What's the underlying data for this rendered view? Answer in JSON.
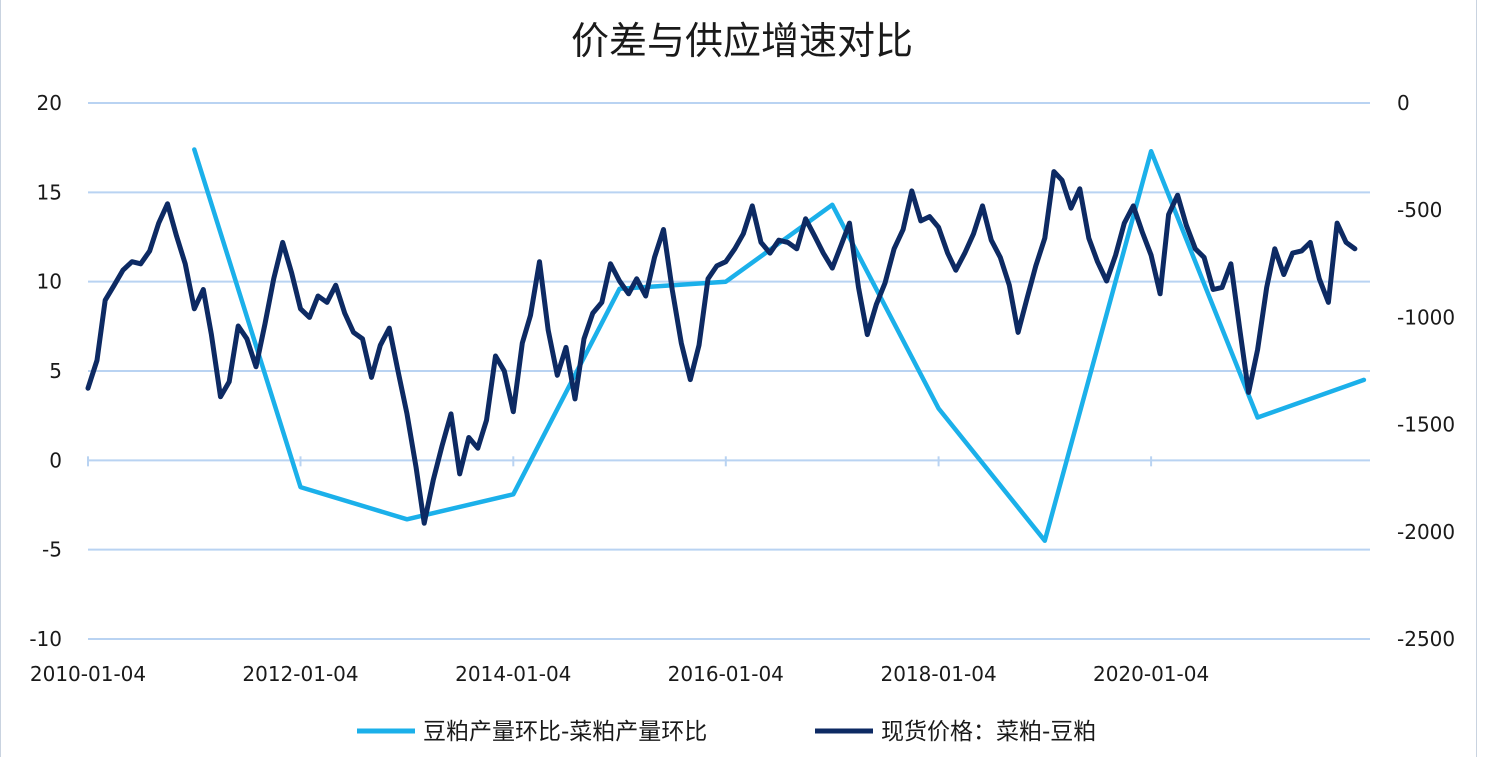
{
  "chart_data": {
    "type": "line",
    "title": "价差与供应增速对比",
    "x_tick_labels": [
      "2010-01-04",
      "2012-01-04",
      "2014-01-04",
      "2016-01-04",
      "2018-01-04",
      "2020-01-04"
    ],
    "y_left": {
      "range": [
        -10,
        20
      ],
      "ticks": [
        "20",
        "15",
        "10",
        "5",
        "0",
        "-5",
        "-10"
      ]
    },
    "y_right": {
      "range": [
        -2500,
        0
      ],
      "ticks": [
        "0",
        "-500",
        "-1000",
        "-1500",
        "-2000",
        "-2500"
      ]
    },
    "grid": "horizontal",
    "legend_position": "bottom",
    "series": [
      {
        "name": "豆粕产量环比-菜粕产量环比",
        "axis": "left",
        "color": "#1bb0ea",
        "points": [
          [
            "2011-01",
            17.4
          ],
          [
            "2012-01",
            -1.5
          ],
          [
            "2013-01",
            -3.3
          ],
          [
            "2014-01",
            -1.9
          ],
          [
            "2015-01",
            9.6
          ],
          [
            "2016-01",
            10.0
          ],
          [
            "2017-01",
            14.3
          ],
          [
            "2018-01",
            2.9
          ],
          [
            "2019-01",
            -4.5
          ],
          [
            "2020-01",
            17.3
          ],
          [
            "2021-01",
            2.4
          ],
          [
            "2022-01",
            4.5
          ]
        ]
      },
      {
        "name": "现货价格：菜粕-豆粕",
        "axis": "right",
        "color": "#0d2a63",
        "points": [
          [
            "2010-01",
            -1330
          ],
          [
            "2010-02",
            -1200
          ],
          [
            "2010-03",
            -920
          ],
          [
            "2010-04",
            -850
          ],
          [
            "2010-05",
            -780
          ],
          [
            "2010-06",
            -740
          ],
          [
            "2010-07",
            -750
          ],
          [
            "2010-08",
            -690
          ],
          [
            "2010-09",
            -560
          ],
          [
            "2010-10",
            -470
          ],
          [
            "2010-11",
            -620
          ],
          [
            "2010-12",
            -750
          ],
          [
            "2011-01",
            -960
          ],
          [
            "2011-02",
            -870
          ],
          [
            "2011-03",
            -1080
          ],
          [
            "2011-04",
            -1370
          ],
          [
            "2011-05",
            -1300
          ],
          [
            "2011-06",
            -1040
          ],
          [
            "2011-07",
            -1100
          ],
          [
            "2011-08",
            -1230
          ],
          [
            "2011-09",
            -1030
          ],
          [
            "2011-10",
            -820
          ],
          [
            "2011-11",
            -650
          ],
          [
            "2011-12",
            -790
          ],
          [
            "2012-01",
            -960
          ],
          [
            "2012-02",
            -1000
          ],
          [
            "2012-03",
            -900
          ],
          [
            "2012-04",
            -930
          ],
          [
            "2012-05",
            -850
          ],
          [
            "2012-06",
            -980
          ],
          [
            "2012-07",
            -1070
          ],
          [
            "2012-08",
            -1100
          ],
          [
            "2012-09",
            -1280
          ],
          [
            "2012-10",
            -1130
          ],
          [
            "2012-11",
            -1050
          ],
          [
            "2012-12",
            -1250
          ],
          [
            "2013-01",
            -1450
          ],
          [
            "2013-02",
            -1700
          ],
          [
            "2013-03",
            -1960
          ],
          [
            "2013-04",
            -1760
          ],
          [
            "2013-05",
            -1600
          ],
          [
            "2013-06",
            -1450
          ],
          [
            "2013-07",
            -1730
          ],
          [
            "2013-08",
            -1560
          ],
          [
            "2013-09",
            -1610
          ],
          [
            "2013-10",
            -1480
          ],
          [
            "2013-11",
            -1180
          ],
          [
            "2013-12",
            -1250
          ],
          [
            "2014-01",
            -1440
          ],
          [
            "2014-02",
            -1120
          ],
          [
            "2014-03",
            -990
          ],
          [
            "2014-04",
            -740
          ],
          [
            "2014-05",
            -1060
          ],
          [
            "2014-06",
            -1270
          ],
          [
            "2014-07",
            -1140
          ],
          [
            "2014-08",
            -1380
          ],
          [
            "2014-09",
            -1100
          ],
          [
            "2014-10",
            -980
          ],
          [
            "2014-11",
            -930
          ],
          [
            "2014-12",
            -750
          ],
          [
            "2015-01",
            -830
          ],
          [
            "2015-02",
            -890
          ],
          [
            "2015-03",
            -820
          ],
          [
            "2015-04",
            -900
          ],
          [
            "2015-05",
            -720
          ],
          [
            "2015-06",
            -590
          ],
          [
            "2015-07",
            -870
          ],
          [
            "2015-08",
            -1120
          ],
          [
            "2015-09",
            -1290
          ],
          [
            "2015-10",
            -1130
          ],
          [
            "2015-11",
            -820
          ],
          [
            "2015-12",
            -760
          ],
          [
            "2016-01",
            -740
          ],
          [
            "2016-02",
            -680
          ],
          [
            "2016-03",
            -610
          ],
          [
            "2016-04",
            -480
          ],
          [
            "2016-05",
            -650
          ],
          [
            "2016-06",
            -700
          ],
          [
            "2016-07",
            -640
          ],
          [
            "2016-08",
            -650
          ],
          [
            "2016-09",
            -680
          ],
          [
            "2016-10",
            -540
          ],
          [
            "2016-11",
            -620
          ],
          [
            "2016-12",
            -700
          ],
          [
            "2017-01",
            -770
          ],
          [
            "2017-02",
            -660
          ],
          [
            "2017-03",
            -560
          ],
          [
            "2017-04",
            -860
          ],
          [
            "2017-05",
            -1080
          ],
          [
            "2017-06",
            -940
          ],
          [
            "2017-07",
            -840
          ],
          [
            "2017-08",
            -680
          ],
          [
            "2017-09",
            -590
          ],
          [
            "2017-10",
            -410
          ],
          [
            "2017-11",
            -550
          ],
          [
            "2017-12",
            -530
          ],
          [
            "2018-01",
            -580
          ],
          [
            "2018-02",
            -700
          ],
          [
            "2018-03",
            -780
          ],
          [
            "2018-04",
            -700
          ],
          [
            "2018-05",
            -610
          ],
          [
            "2018-06",
            -480
          ],
          [
            "2018-07",
            -640
          ],
          [
            "2018-08",
            -720
          ],
          [
            "2018-09",
            -850
          ],
          [
            "2018-10",
            -1070
          ],
          [
            "2018-11",
            -910
          ],
          [
            "2018-12",
            -760
          ],
          [
            "2019-01",
            -630
          ],
          [
            "2019-02",
            -320
          ],
          [
            "2019-03",
            -360
          ],
          [
            "2019-04",
            -490
          ],
          [
            "2019-05",
            -400
          ],
          [
            "2019-06",
            -630
          ],
          [
            "2019-07",
            -740
          ],
          [
            "2019-08",
            -830
          ],
          [
            "2019-09",
            -710
          ],
          [
            "2019-10",
            -560
          ],
          [
            "2019-11",
            -480
          ],
          [
            "2019-12",
            -600
          ],
          [
            "2020-01",
            -710
          ],
          [
            "2020-02",
            -890
          ],
          [
            "2020-03",
            -520
          ],
          [
            "2020-04",
            -430
          ],
          [
            "2020-05",
            -570
          ],
          [
            "2020-06",
            -680
          ],
          [
            "2020-07",
            -720
          ],
          [
            "2020-08",
            -870
          ],
          [
            "2020-09",
            -860
          ],
          [
            "2020-10",
            -750
          ],
          [
            "2020-11",
            -1060
          ],
          [
            "2020-12",
            -1350
          ],
          [
            "2021-01",
            -1150
          ],
          [
            "2021-02",
            -860
          ],
          [
            "2021-03",
            -680
          ],
          [
            "2021-04",
            -800
          ],
          [
            "2021-05",
            -700
          ],
          [
            "2021-06",
            -690
          ],
          [
            "2021-07",
            -650
          ],
          [
            "2021-08",
            -820
          ],
          [
            "2021-09",
            -930
          ],
          [
            "2021-10",
            -560
          ],
          [
            "2021-11",
            -650
          ],
          [
            "2021-12",
            -680
          ]
        ]
      }
    ]
  }
}
